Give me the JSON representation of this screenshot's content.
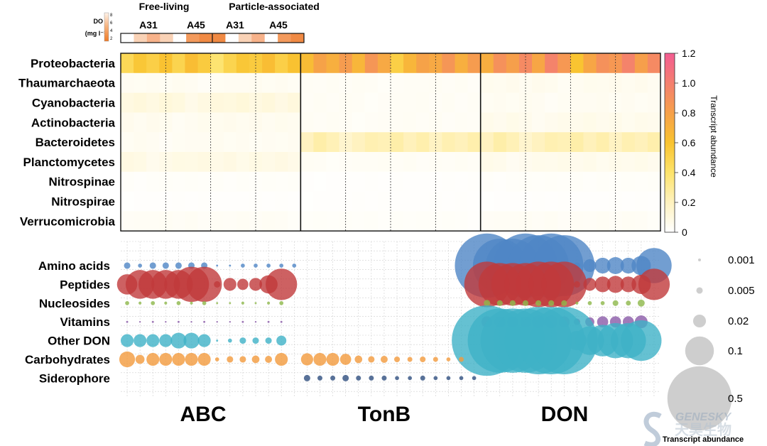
{
  "chart_data": [
    {
      "type": "heatmap",
      "title": "",
      "top_legend": {
        "title_line1": "DO",
        "title_line2": "(mg l⁻¹)",
        "ticks": [
          "8",
          "6",
          "4",
          "2"
        ],
        "group_labels": [
          "Free-living",
          "Particle-associated"
        ],
        "station_labels": [
          "A31",
          "A45",
          "A31",
          "A45"
        ],
        "strip_colors": [
          "#ffffff",
          "#f9d2b6",
          "#f7b28a",
          "#f9d2b6",
          "#ffffff",
          "#f39a5c",
          "#f08a44",
          "#f08a44",
          "#ffffff",
          "#f9d2b6",
          "#f7b28a",
          "#ffffff",
          "#f39a5c",
          "#f08a44"
        ]
      },
      "rows": [
        "Proteobacteria",
        "Thaumarchaeota",
        "Cyanobacteria",
        "Actinobacteria",
        "Bacteroidetes",
        "Planctomycetes",
        "Nitrospinae",
        "Nitrospirae",
        "Verrucomicrobia"
      ],
      "panels": [
        "ABC",
        "TonB",
        "DON"
      ],
      "columns_per_panel": 14,
      "row_levels": {
        "Proteobacteria": [
          0.55,
          0.75,
          0.85
        ],
        "Thaumarchaeota": [
          0.04,
          0.03,
          0.05
        ],
        "Cyanobacteria": [
          0.1,
          0.03,
          0.04
        ],
        "Actinobacteria": [
          0.05,
          0.03,
          0.06
        ],
        "Bacteroidetes": [
          0.04,
          0.22,
          0.22
        ],
        "Planctomycetes": [
          0.08,
          0.03,
          0.06
        ],
        "Nitrospinae": [
          0.02,
          0.01,
          0.02
        ],
        "Nitrospirae": [
          0.01,
          0.01,
          0.01
        ],
        "Verrucomicrobia": [
          0.03,
          0.02,
          0.03
        ]
      },
      "colorbar": {
        "label": "Transcript abundance",
        "ticks": [
          "1.2",
          "1.0",
          "0.8",
          "0.6",
          "0.4",
          "0.2",
          "0"
        ],
        "range": [
          0,
          1.2
        ],
        "colors": [
          "#ffffff",
          "#fff2bf",
          "#fde36b",
          "#f9c330",
          "#f6a04a",
          "#f47f6f",
          "#f45c92"
        ]
      }
    },
    {
      "type": "scatter",
      "title": "",
      "subtype": "bubble",
      "rows": [
        "Amino acids",
        "Peptides",
        "Nucleosides",
        "Vitamins",
        "Other DON",
        "Carbohydrates",
        "Siderophore"
      ],
      "row_colors": {
        "Amino acids": "#4f86c6",
        "Peptides": "#c0393b",
        "Nucleosides": "#8db84a",
        "Vitamins": "#8a5aa8",
        "Other DON": "#3fb2c7",
        "Carbohydrates": "#f39a3c",
        "Siderophore": "#2f4f7f"
      },
      "panels": [
        "ABC",
        "TonB",
        "DON"
      ],
      "columns_per_panel": 14,
      "values": {
        "Amino acids": [
          [
            0.005,
            0.002,
            0.005,
            0.005,
            0.005,
            0.005,
            0.005,
            0.0005,
            0.0005,
            0.002,
            0.002,
            0.002,
            0.002,
            0.002
          ],
          [
            0,
            0,
            0,
            0,
            0,
            0,
            0,
            0,
            0,
            0,
            0,
            0,
            0,
            0
          ],
          [
            0.5,
            0.35,
            0.35,
            0.5,
            0.45,
            0.5,
            0.45,
            0.005,
            0.02,
            0.03,
            0.035,
            0.03,
            0.045,
            0.15
          ]
        ],
        "Peptides": [
          [
            0.05,
            0.1,
            0.1,
            0.1,
            0.1,
            0.15,
            0.15,
            0.005,
            0.02,
            0.015,
            0.02,
            0.04,
            0.12,
            0
          ],
          [
            0,
            0,
            0,
            0,
            0,
            0,
            0,
            0,
            0,
            0,
            0,
            0,
            0,
            0
          ],
          [
            0.25,
            0.22,
            0.22,
            0.22,
            0.25,
            0.25,
            0.25,
            0.005,
            0.02,
            0.03,
            0.035,
            0.03,
            0.045,
            0.12
          ]
        ],
        "Nucleosides": [
          [
            0.002,
            0.001,
            0.002,
            0.001,
            0.002,
            0.001,
            0.002,
            0.0005,
            0.0005,
            0.001,
            0.0005,
            0.001,
            0.002,
            0
          ],
          [
            0,
            0,
            0,
            0,
            0,
            0,
            0,
            0,
            0,
            0,
            0,
            0,
            0,
            0
          ],
          [
            0.005,
            0.004,
            0.004,
            0.004,
            0.004,
            0.004,
            0.004,
            0.001,
            0.002,
            0.002,
            0.004,
            0.003,
            0.006,
            0
          ]
        ],
        "Vitamins": [
          [
            0.0005,
            0.0003,
            0.0005,
            0.0003,
            0.0005,
            0.0003,
            0.0005,
            0.0003,
            0.0003,
            0.0005,
            0.0003,
            0.0005,
            0.0005,
            0
          ],
          [
            0,
            0,
            0,
            0,
            0,
            0,
            0,
            0,
            0,
            0,
            0,
            0,
            0,
            0
          ],
          [
            0.015,
            0.015,
            0.015,
            0.015,
            0.02,
            0.02,
            0.015,
            0.005,
            0.01,
            0.015,
            0.015,
            0.015,
            0.02,
            0
          ]
        ],
        "Other DON": [
          [
            0.02,
            0.02,
            0.02,
            0.02,
            0.03,
            0.03,
            0.02,
            0.0005,
            0.002,
            0.005,
            0.005,
            0.005,
            0.012,
            0
          ],
          [
            0,
            0,
            0,
            0,
            0,
            0,
            0,
            0,
            0,
            0,
            0,
            0,
            0,
            0
          ],
          [
            0.6,
            0.5,
            0.5,
            0.5,
            0.55,
            0.55,
            0.55,
            0.045,
            0.1,
            0.12,
            0.15,
            0.15,
            0.2,
            0
          ]
        ],
        "Carbohydrates": [
          [
            0.03,
            0.01,
            0.02,
            0.02,
            0.02,
            0.02,
            0.02,
            0.002,
            0.005,
            0.005,
            0.007,
            0.006,
            0.02,
            0
          ],
          [
            0.018,
            0.02,
            0.02,
            0.015,
            0.007,
            0.005,
            0.006,
            0.004,
            0.003,
            0.004,
            0.003,
            0.002,
            0.003,
            0
          ],
          [
            0,
            0,
            0,
            0,
            0,
            0,
            0,
            0,
            0,
            0,
            0,
            0,
            0,
            0
          ]
        ],
        "Siderophore": [
          [
            0,
            0,
            0,
            0,
            0,
            0,
            0,
            0,
            0,
            0,
            0,
            0,
            0,
            0
          ],
          [
            0.005,
            0.003,
            0.003,
            0.005,
            0.003,
            0.003,
            0.003,
            0.002,
            0.002,
            0.003,
            0.002,
            0.002,
            0.002,
            0.002
          ],
          [
            0,
            0,
            0,
            0,
            0,
            0,
            0,
            0,
            0,
            0,
            0,
            0,
            0,
            0
          ]
        ]
      },
      "size_legend": {
        "title": "Transcript abundance",
        "entries": [
          {
            "label": "0.001",
            "value": 0.001
          },
          {
            "label": "0.005",
            "value": 0.005
          },
          {
            "label": "0.02",
            "value": 0.02
          },
          {
            "label": "0.1",
            "value": 0.1
          },
          {
            "label": "0.5",
            "value": 0.5
          }
        ]
      }
    }
  ],
  "watermark": {
    "text_top": "GENESKY",
    "text_bottom": "天昊生物"
  }
}
